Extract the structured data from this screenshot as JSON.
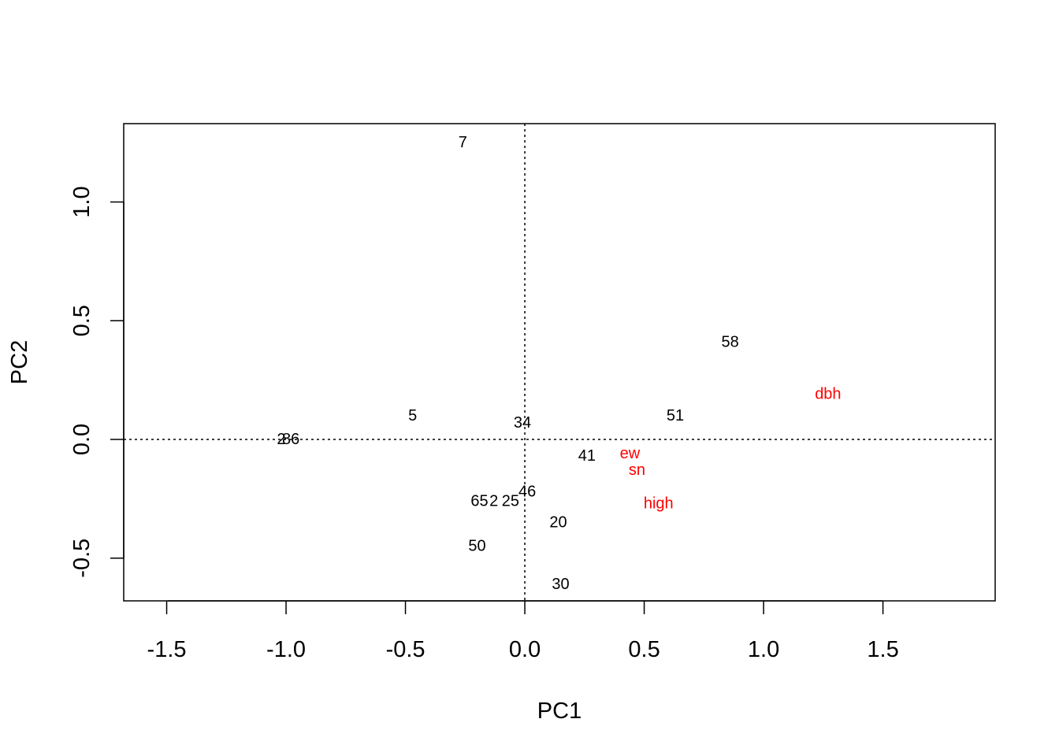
{
  "chart_data": {
    "type": "scatter",
    "xlabel": "PC1",
    "ylabel": "PC2",
    "xlim": [
      -1.68,
      1.97
    ],
    "ylim": [
      -0.68,
      1.33
    ],
    "x_ticks": [
      {
        "value": -1.5,
        "label": "-1.5"
      },
      {
        "value": -1.0,
        "label": "-1.0"
      },
      {
        "value": -0.5,
        "label": "-0.5"
      },
      {
        "value": 0.0,
        "label": "0.0"
      },
      {
        "value": 0.5,
        "label": "0.5"
      },
      {
        "value": 1.0,
        "label": "1.0"
      },
      {
        "value": 1.5,
        "label": "1.5"
      }
    ],
    "y_ticks": [
      {
        "value": -0.5,
        "label": "-0.5"
      },
      {
        "value": 0.0,
        "label": "0.0"
      },
      {
        "value": 0.5,
        "label": "0.5"
      },
      {
        "value": 1.0,
        "label": "1.0"
      }
    ],
    "reference_lines": {
      "x": 0,
      "y": 0,
      "style": "dotted"
    },
    "grid": false,
    "series": [
      {
        "name": "",
        "color": "#000000",
        "points": [
          {
            "label": "7",
            "x": -0.26,
            "y": 1.25
          },
          {
            "label": "58",
            "x": 0.86,
            "y": 0.41
          },
          {
            "label": "5",
            "x": -0.47,
            "y": 0.1
          },
          {
            "label": "51",
            "x": 0.63,
            "y": 0.1
          },
          {
            "label": "34",
            "x": -0.01,
            "y": 0.07
          },
          {
            "label": "2",
            "x": -1.02,
            "y": 0.0
          },
          {
            "label": "86",
            "x": -0.98,
            "y": 0.0
          },
          {
            "label": "41",
            "x": 0.26,
            "y": -0.07
          },
          {
            "label": "46",
            "x": 0.01,
            "y": -0.22
          },
          {
            "label": "65",
            "x": -0.19,
            "y": -0.26
          },
          {
            "label": "2",
            "x": -0.13,
            "y": -0.26
          },
          {
            "label": "25",
            "x": -0.06,
            "y": -0.26
          },
          {
            "label": "20",
            "x": 0.14,
            "y": -0.35
          },
          {
            "label": "50",
            "x": -0.2,
            "y": -0.45
          },
          {
            "label": "30",
            "x": 0.15,
            "y": -0.61
          }
        ]
      },
      {
        "name": "",
        "color": "#ff0000",
        "points": [
          {
            "label": "dbh",
            "x": 1.27,
            "y": 0.19
          },
          {
            "label": "ew",
            "x": 0.44,
            "y": -0.06
          },
          {
            "label": "sn",
            "x": 0.47,
            "y": -0.13
          },
          {
            "label": "high",
            "x": 0.56,
            "y": -0.27
          }
        ]
      }
    ]
  }
}
